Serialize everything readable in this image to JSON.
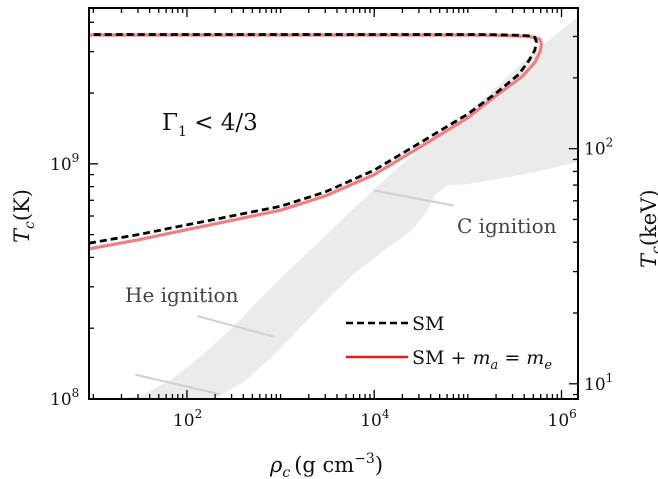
{
  "chart_data": {
    "type": "line",
    "xlabel_sym": "ρ",
    "xlabel_sub": "c",
    "xlabel_unit": "(g cm",
    "xlabel_exp": "−3",
    "xlabel_close": ")",
    "ylabel_sym": "T",
    "ylabel_sub": "c",
    "ylabel_unit": "(K)",
    "y2label_sym": "T",
    "y2label_sub": "c",
    "y2label_unit": "(keV)",
    "xscale": "log",
    "yscale": "log",
    "xlim": [
      9.0,
      1500000.0
    ],
    "ylim": [
      100000000.0,
      4600000000.0
    ],
    "xticks": [
      {
        "base": "10",
        "exp": "2",
        "value": 100
      },
      {
        "base": "10",
        "exp": "4",
        "value": 10000
      },
      {
        "base": "10",
        "exp": "6",
        "value": 1000000
      }
    ],
    "yticks": [
      {
        "base": "10",
        "exp": "8",
        "value": 100000000.0
      },
      {
        "base": "10",
        "exp": "9",
        "value": 1000000000.0
      }
    ],
    "y2ticks": [
      {
        "base": "10",
        "exp": "1",
        "value": 10
      },
      {
        "base": "10",
        "exp": "2",
        "value": 100
      }
    ],
    "kelvin_per_keV": 11604518,
    "region_label": {
      "main": "Γ",
      "sub": "1",
      "rest": " < 4/3"
    },
    "annotations": [
      "C ignition",
      "He ignition"
    ],
    "series": [
      {
        "name": "SM",
        "style": "dashed",
        "color": "#000000",
        "x": [
          9,
          30,
          100,
          300,
          1000,
          3000,
          10000,
          30000,
          100000,
          200000,
          350000,
          450000,
          520000,
          540000,
          520000,
          460000,
          350000,
          200000,
          100000,
          30000,
          10000,
          1000,
          100,
          9
        ],
        "y": [
          460000000.0,
          500000000.0,
          550000000.0,
          600000000.0,
          660000000.0,
          760000000.0,
          940000000.0,
          1220000000.0,
          1630000000.0,
          2000000000.0,
          2400000000.0,
          2750000000.0,
          3050000000.0,
          3300000000.0,
          3450000000.0,
          3500000000.0,
          3520000000.0,
          3540000000.0,
          3550000000.0,
          3550000000.0,
          3550000000.0,
          3550000000.0,
          3550000000.0,
          3550000000.0
        ]
      },
      {
        "name": "SM + m_a = m_e",
        "legend_parts": {
          "a": "SM + ",
          "m1": "m",
          "s1": "a",
          "b": " = ",
          "m2": "m",
          "s2": "e"
        },
        "style": "solid",
        "color": "#f08080",
        "x": [
          9,
          30,
          100,
          300,
          1000,
          3000,
          10000,
          30000,
          100000,
          200000,
          380000,
          520000,
          590000,
          610000,
          590000,
          520000,
          400000,
          200000,
          100000,
          30000,
          10000,
          1000,
          100,
          9
        ],
        "y": [
          435000000.0,
          475000000.0,
          525000000.0,
          575000000.0,
          635000000.0,
          730000000.0,
          900000000.0,
          1170000000.0,
          1570000000.0,
          1950000000.0,
          2350000000.0,
          2700000000.0,
          3000000000.0,
          3220000000.0,
          3380000000.0,
          3450000000.0,
          3490000000.0,
          3520000000.0,
          3530000000.0,
          3530000000.0,
          3530000000.0,
          3530000000.0,
          3530000000.0,
          3530000000.0
        ]
      }
    ],
    "bands": [
      {
        "name": "ignition band",
        "color": "#ebebeb",
        "x": [
          14,
          40,
          100,
          200,
          400,
          800,
          1500,
          3000,
          6000,
          12000,
          25000,
          35000,
          45000,
          60000,
          100000,
          200000,
          500000,
          1000000,
          1500000,
          1500000,
          1000000,
          600000,
          400000,
          250000,
          150000,
          80000,
          40000,
          20000,
          10000,
          5000,
          2500,
          1200,
          600,
          300,
          150,
          70,
          35,
          20,
          14
        ],
        "y": [
          100000000.0,
          100000000.0,
          100000000.0,
          100000000.0,
          118000000.0,
          150000000.0,
          195000000.0,
          260000000.0,
          340000000.0,
          420000000.0,
          520000000.0,
          610000000.0,
          740000000.0,
          810000000.0,
          820000000.0,
          860000000.0,
          920000000.0,
          980000000.0,
          1020000000.0,
          4200000000.0,
          3700000000.0,
          3150000000.0,
          2750000000.0,
          2300000000.0,
          1900000000.0,
          1550000000.0,
          1250000000.0,
          1000000000.0,
          780000000.0,
          600000000.0,
          460000000.0,
          350000000.0,
          265000000.0,
          200000000.0,
          155000000.0,
          122000000.0,
          105000000.0,
          100000000.0,
          100000000.0
        ]
      }
    ],
    "ignition_lines": [
      {
        "x": [
          28,
          220
        ],
        "y": [
          127000000.0,
          105000000.0
        ]
      },
      {
        "x": [
          130,
          850
        ],
        "y": [
          225000000.0,
          184000000.0
        ]
      },
      {
        "x": [
          10000,
          70000
        ],
        "y": [
          770000000.0,
          665000000.0
        ]
      }
    ],
    "legend": {
      "position": "lower-right"
    },
    "grid": false
  }
}
